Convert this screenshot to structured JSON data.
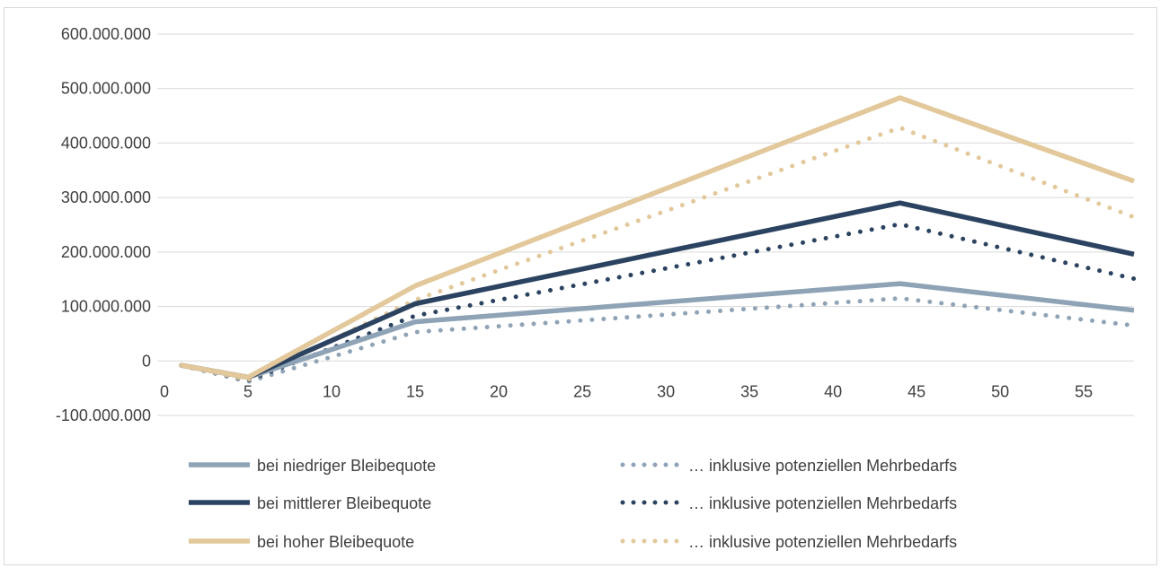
{
  "chart_data": {
    "type": "line",
    "title": "",
    "xlabel": "",
    "ylabel": "",
    "xlim": [
      0,
      58
    ],
    "ylim": [
      -100000000,
      600000000
    ],
    "x_ticks": [
      0,
      5,
      10,
      15,
      20,
      25,
      30,
      35,
      40,
      45,
      50,
      55
    ],
    "x_tick_labels": [
      "0",
      "5",
      "10",
      "15",
      "20",
      "25",
      "30",
      "35",
      "40",
      "45",
      "50",
      "55"
    ],
    "y_ticks": [
      -100000000,
      0,
      100000000,
      200000000,
      300000000,
      400000000,
      500000000,
      600000000
    ],
    "y_tick_labels": [
      "-100.000.000",
      "0",
      "100.000.000",
      "200.000.000",
      "300.000.000",
      "400.000.000",
      "500.000.000",
      "600.000.000"
    ],
    "grid": "horizontal",
    "legend_position": "bottom",
    "series": [
      {
        "name": "bei niedriger Bleibequote",
        "style": "solid",
        "color": "#8fa3b6",
        "x": [
          1,
          5,
          15,
          44,
          58
        ],
        "y": [
          -8000000,
          -30000000,
          72000000,
          142000000,
          93000000
        ]
      },
      {
        "name": "… inklusive potenziellen Mehrbedarfs",
        "style": "dotted",
        "color": "#8fa3b6",
        "x": [
          1,
          5,
          15,
          44,
          58
        ],
        "y": [
          -8000000,
          -38000000,
          53000000,
          115000000,
          65000000
        ]
      },
      {
        "name": "bei mittlerer Bleibequote",
        "style": "solid",
        "color": "#2b4360",
        "x": [
          1,
          5,
          15,
          44,
          58
        ],
        "y": [
          -8000000,
          -30000000,
          105000000,
          290000000,
          196000000
        ]
      },
      {
        "name": "… inklusive potenziellen Mehrbedarfs",
        "style": "dotted",
        "color": "#2b4360",
        "x": [
          1,
          5,
          15,
          44,
          58
        ],
        "y": [
          -8000000,
          -36000000,
          83000000,
          251000000,
          151000000
        ]
      },
      {
        "name": "bei hoher Bleibequote",
        "style": "solid",
        "color": "#e2c89a",
        "x": [
          1,
          5,
          15,
          44,
          58
        ],
        "y": [
          -8000000,
          -30000000,
          138000000,
          483000000,
          330000000
        ]
      },
      {
        "name": "… inklusive potenziellen Mehrbedarfs",
        "style": "dotted",
        "color": "#e2c89a",
        "x": [
          1,
          5,
          15,
          44,
          58
        ],
        "y": [
          -8000000,
          -35000000,
          112000000,
          428000000,
          264000000
        ]
      }
    ]
  }
}
